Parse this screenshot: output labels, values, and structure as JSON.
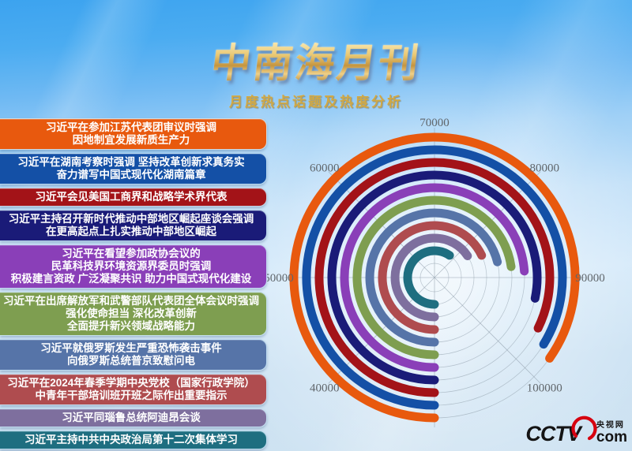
{
  "header": {
    "title": "中南海月刊",
    "subtitle": "月度热点话题及热度分析"
  },
  "topics": [
    {
      "lines": [
        "习近平在参加江苏代表团审议时强调",
        "因地制宜发展新质生产力"
      ],
      "color": "#E8590E"
    },
    {
      "lines": [
        "习近平在湖南考察时强调 坚持改革创新求真务实",
        "奋力谱写中国式现代化湖南篇章"
      ],
      "color": "#1450A6"
    },
    {
      "lines": [
        "习近平会见美国工商界和战略学术界代表"
      ],
      "color": "#A31318"
    },
    {
      "lines": [
        "习近平主持召开新时代推动中部地区崛起座谈会强调",
        "在更高起点上扎实推动中部地区崛起"
      ],
      "color": "#1A1B78"
    },
    {
      "lines": [
        "习近平在看望参加政协会议的",
        "民革科技界环境资源界委员时强调",
        "积极建言资政 广泛凝聚共识 助力中国式现代化建设"
      ],
      "color": "#8A3FB8"
    },
    {
      "lines": [
        "习近平在出席解放军和武警部队代表团全体会议时强调",
        "强化使命担当 深化改革创新",
        "全面提升新兴领域战略能力"
      ],
      "color": "#7E9E50"
    },
    {
      "lines": [
        "习近平就俄罗斯发生严重恐怖袭击事件",
        "向俄罗斯总统普京致慰问电"
      ],
      "color": "#5674A8"
    },
    {
      "lines": [
        "习近平在2024年春季学期中央党校（国家行政学院）",
        "中青年干部培训班开班之际作出重要指示"
      ],
      "color": "#AF4C4F"
    },
    {
      "lines": [
        "习近平同瑙鲁总统阿迪昂会谈"
      ],
      "color": "#7E6F9E"
    },
    {
      "lines": [
        "习近平主持中共中央政治局第十二次集体学习"
      ],
      "color": "#1E6E80"
    }
  ],
  "chart_data": {
    "type": "radial-bar",
    "title": "月度热点话题及热度分析",
    "angular_axis": {
      "value_range": [
        30000,
        110000
      ],
      "tick_values": [
        40000,
        50000,
        60000,
        70000,
        80000,
        90000,
        100000
      ],
      "tick_labels": [
        "40000",
        "50000",
        "60000",
        "70000",
        "80000",
        "90000",
        "100000"
      ],
      "start_angle": "bottom",
      "direction": "clockwise",
      "grid": true
    },
    "series": [
      {
        "topic_index": 0,
        "value": 97800
      },
      {
        "topic_index": 1,
        "value": 97000
      },
      {
        "topic_index": 2,
        "value": 95800
      },
      {
        "topic_index": 3,
        "value": 92600
      },
      {
        "topic_index": 4,
        "value": 89100
      },
      {
        "topic_index": 5,
        "value": 88200
      },
      {
        "topic_index": 6,
        "value": 86900
      },
      {
        "topic_index": 7,
        "value": 84400
      },
      {
        "topic_index": 8,
        "value": 82600
      },
      {
        "topic_index": 9,
        "value": 77600
      }
    ],
    "layout": {
      "ring_order": "outermost ring = first topic",
      "legend": "none"
    }
  },
  "logo": {
    "brand": "CCTV",
    "cn": "央视网",
    "com": "com"
  }
}
